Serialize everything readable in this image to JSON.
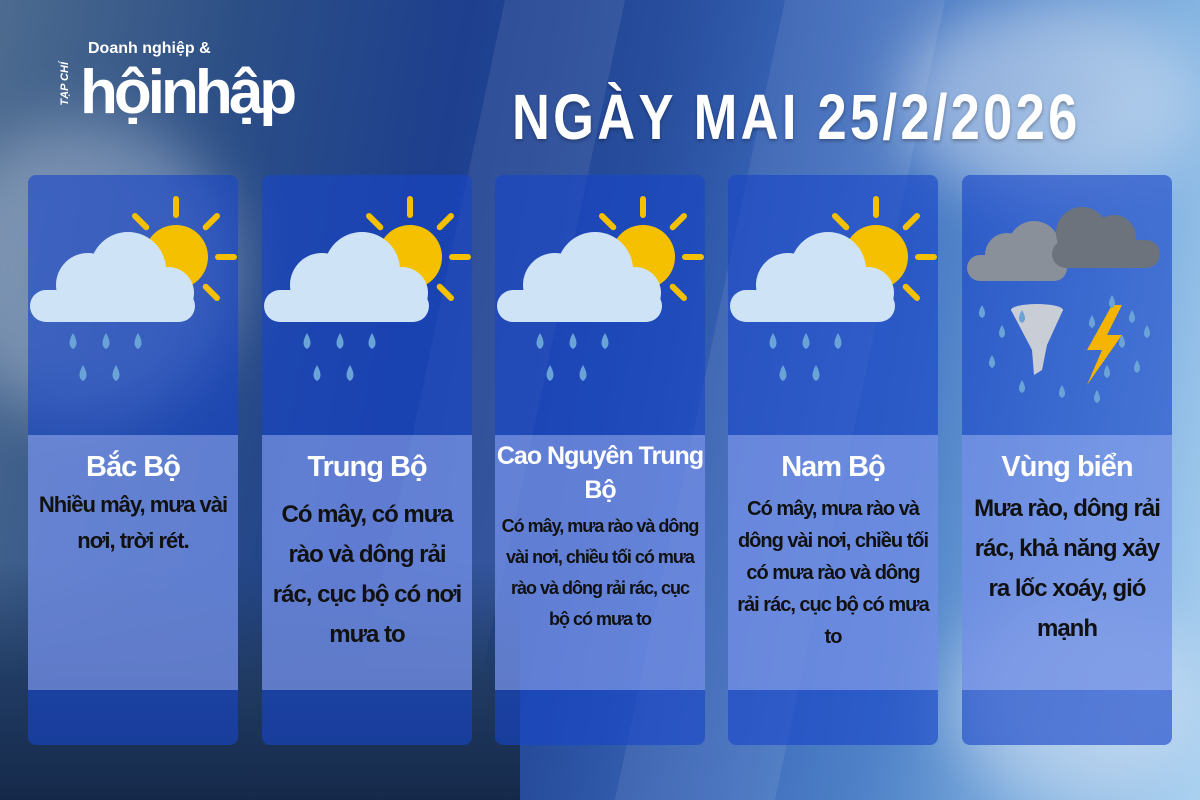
{
  "logo": {
    "prefix": "TẠP CHÍ",
    "tagline": "Doanh nghiệp &",
    "name": "hộinhập"
  },
  "title": "NGÀY MAI 25/2/2026",
  "colors": {
    "sun": "#f5c000",
    "cloud": "#cfe3f7",
    "rain": "#6aa3d8",
    "storm_cloud": "#8a9099",
    "lightning": "#f5b400",
    "card": "#1a4bd0"
  },
  "cards": [
    {
      "region": "Bắc Bộ",
      "icon": "sun-cloud-rain-icon",
      "description": "Nhiều mây, mưa vài nơi, trời rét."
    },
    {
      "region": "Trung Bộ",
      "icon": "sun-cloud-rain-icon",
      "description": "Có mây, có mưa rào và dông rải rác, cục bộ có nơi mưa to"
    },
    {
      "region": "Cao Nguyên Trung Bộ",
      "icon": "sun-cloud-rain-icon",
      "description": "Có mây, mưa rào và dông vài nơi, chiều tối có mưa rào và dông rải rác, cục bộ có mưa to"
    },
    {
      "region": "Nam Bộ",
      "icon": "sun-cloud-rain-icon",
      "description": "Có mây, mưa rào và dông vài nơi, chiều tối có mưa rào và dông rải rác, cục bộ có mưa to"
    },
    {
      "region": "Vùng biển",
      "icon": "storm-tornado-icon",
      "description": "Mưa rào, dông rải rác, khả năng xảy ra lốc xoáy, gió mạnh"
    }
  ]
}
